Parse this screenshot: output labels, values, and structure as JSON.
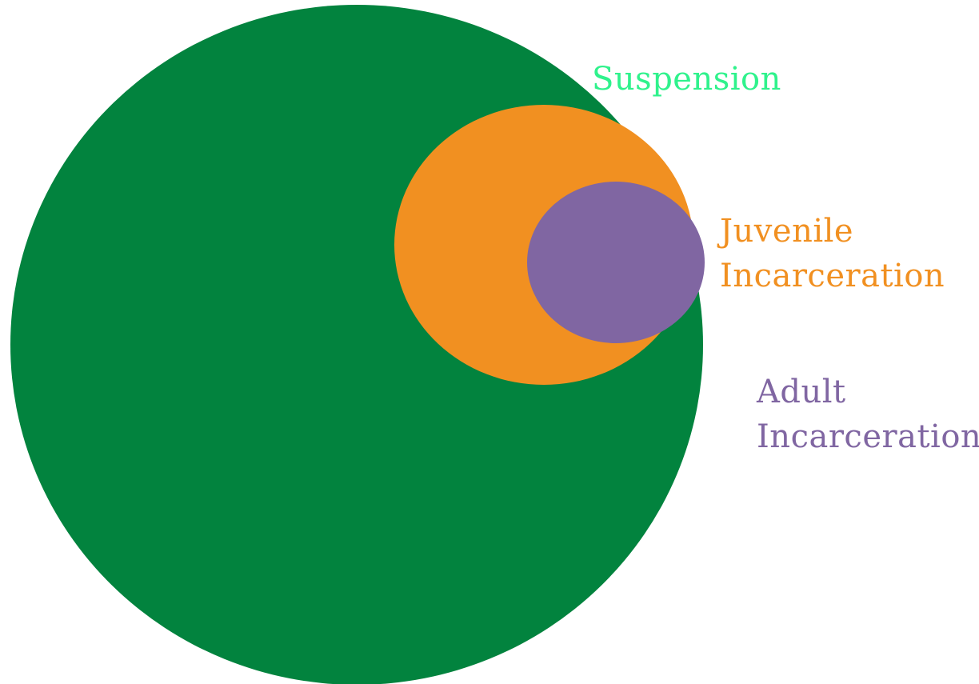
{
  "diagram": {
    "type": "nested-venn",
    "sets": [
      {
        "id": "suspension",
        "label": "Suspension",
        "label_lines": [
          "Suspension"
        ],
        "fill_color": "#02833e",
        "label_color": "#2ff28c"
      },
      {
        "id": "juvenile",
        "label": "Juvenile Incarceration",
        "label_lines": [
          "Juvenile",
          "Incarceration"
        ],
        "fill_color": "#f19021",
        "label_color": "#f19021"
      },
      {
        "id": "adult",
        "label": "Adult Incarceration",
        "label_lines": [
          "Adult",
          "Incarceration"
        ],
        "fill_color": "#8066a2",
        "label_color": "#8066a2"
      }
    ]
  }
}
